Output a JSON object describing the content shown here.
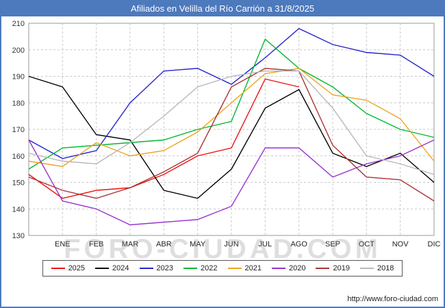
{
  "title": "Afiliados en Velilla del Río Carrión a 31/8/2025",
  "watermark": "FORO-CIUDAD.COM",
  "footer": {
    "url": "http://www.foro-ciudad.com"
  },
  "colors": {
    "titlebar": "#4d79bd",
    "frame_border": "#4d79bd",
    "gridline": "#c8c8c8",
    "plot_border": "#999999"
  },
  "chart_data": {
    "type": "line",
    "title": "Afiliados en Velilla del Río Carrión a 31/8/2025",
    "xlabel": "",
    "ylabel": "",
    "ylim": [
      130,
      210
    ],
    "ytick_step": 10,
    "grid": true,
    "legend_position": "bottom",
    "categories": [
      "ENE",
      "FEB",
      "MAR",
      "ABR",
      "MAY",
      "JUN",
      "JUL",
      "AGO",
      "SEP",
      "OCT",
      "NOV",
      "DIC"
    ],
    "series": [
      {
        "name": "2025",
        "color": "#ee1111",
        "left_edge_value": 153,
        "values": [
          144,
          147,
          148,
          153,
          160,
          163,
          189,
          186
        ]
      },
      {
        "name": "2024",
        "color": "#000000",
        "left_edge_value": 190,
        "values": [
          186,
          168,
          166,
          147,
          144,
          155,
          178,
          185,
          161,
          156,
          161,
          150
        ]
      },
      {
        "name": "2023",
        "color": "#2424cc",
        "left_edge_value": 166,
        "values": [
          159,
          162,
          180,
          192,
          193,
          187,
          197,
          208,
          202,
          199,
          198,
          190
        ]
      },
      {
        "name": "2022",
        "color": "#00b830",
        "left_edge_value": 155,
        "values": [
          163,
          164,
          165,
          166,
          170,
          173,
          204,
          193,
          186,
          176,
          170,
          167
        ]
      },
      {
        "name": "2021",
        "color": "#eea320",
        "left_edge_value": 158,
        "values": [
          156,
          165,
          160,
          162,
          169,
          180,
          191,
          193,
          183,
          181,
          174,
          158
        ]
      },
      {
        "name": "2020",
        "color": "#9932cc",
        "left_edge_value": 166,
        "values": [
          143,
          140,
          134,
          135,
          136,
          141,
          163,
          163,
          152,
          157,
          160,
          166
        ]
      },
      {
        "name": "2019",
        "color": "#aa3333",
        "left_edge_value": 152,
        "values": [
          147,
          144,
          148,
          154,
          161,
          186,
          193,
          192,
          164,
          152,
          151,
          143
        ]
      },
      {
        "name": "2018",
        "color": "#b8b8b8",
        "left_edge_value": 161,
        "values": [
          158,
          157,
          165,
          175,
          186,
          190,
          192,
          192,
          178,
          160,
          157,
          153
        ]
      }
    ]
  }
}
